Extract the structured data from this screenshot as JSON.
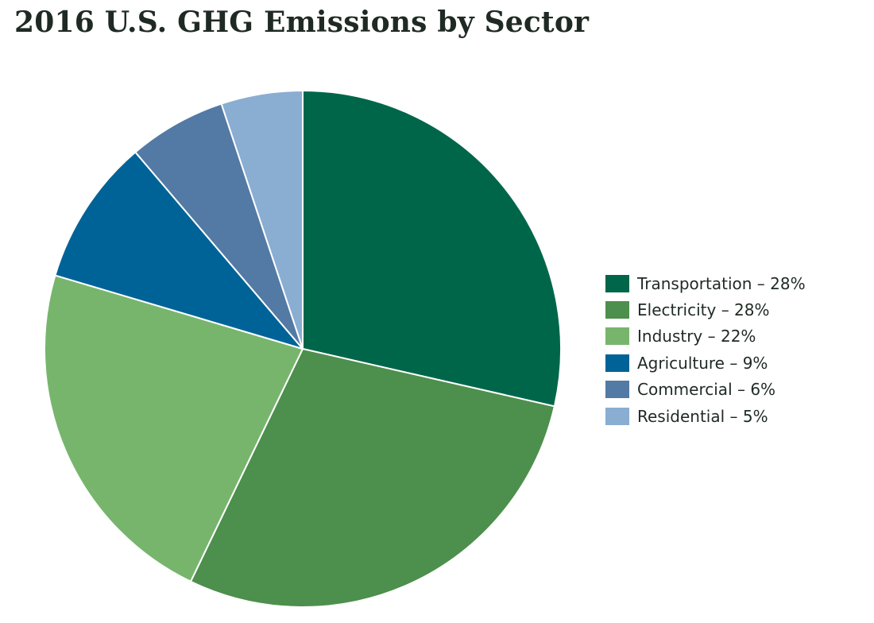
{
  "chart_data": {
    "type": "pie",
    "title": "2016 U.S. GHG Emissions by Sector",
    "legend_position": "right",
    "slices": [
      {
        "label": "Transportation",
        "legend": "Transportation – 28%",
        "value": 28,
        "color": "#00664a"
      },
      {
        "label": "Electricity",
        "legend": "Electricity – 28%",
        "value": 28,
        "color": "#4d8f4c"
      },
      {
        "label": "Industry",
        "legend": "Industry – 22%",
        "value": 22,
        "color": "#77b56d"
      },
      {
        "label": "Agriculture",
        "legend": "Agriculture – 9%",
        "value": 9,
        "color": "#006398"
      },
      {
        "label": "Commercial",
        "legend": "Commercial – 6%",
        "value": 6,
        "color": "#527aa4"
      },
      {
        "label": "Residential",
        "legend": "Residential – 5%",
        "value": 5,
        "color": "#8aadd2"
      }
    ]
  }
}
